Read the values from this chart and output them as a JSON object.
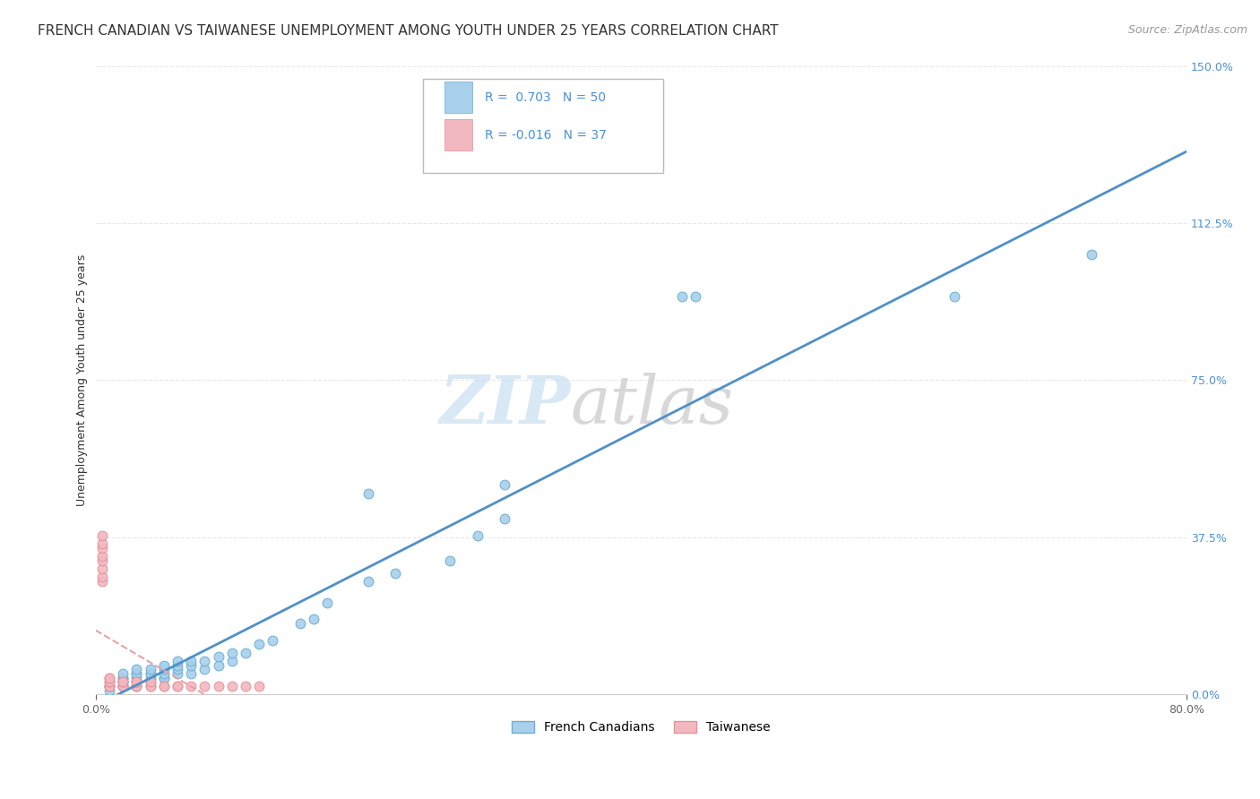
{
  "title": "FRENCH CANADIAN VS TAIWANESE UNEMPLOYMENT AMONG YOUTH UNDER 25 YEARS CORRELATION CHART",
  "source": "Source: ZipAtlas.com",
  "ylabel": "Unemployment Among Youth under 25 years",
  "xlim": [
    0.0,
    0.8
  ],
  "ylim": [
    0.0,
    1.5
  ],
  "xtick_labels": [
    "0.0%",
    "80.0%"
  ],
  "ytick_labels": [
    "0.0%",
    "37.5%",
    "75.0%",
    "112.5%",
    "150.0%"
  ],
  "ytick_vals": [
    0.0,
    0.375,
    0.75,
    1.125,
    1.5
  ],
  "xtick_vals": [
    0.0,
    0.8
  ],
  "fc_color": "#a8d0ea",
  "tw_color": "#f2b8c0",
  "fc_edge_color": "#6aaed6",
  "tw_edge_color": "#e8909a",
  "fc_line_color": "#5090c8",
  "tw_line_color": "#e8a0aa",
  "R_fc": 0.703,
  "N_fc": 50,
  "R_tw": -0.016,
  "N_tw": 37,
  "fc_x": [
    0.01,
    0.01,
    0.01,
    0.02,
    0.02,
    0.02,
    0.02,
    0.02,
    0.02,
    0.02,
    0.03,
    0.03,
    0.03,
    0.03,
    0.03,
    0.03,
    0.04,
    0.04,
    0.04,
    0.04,
    0.04,
    0.05,
    0.05,
    0.05,
    0.05,
    0.05,
    0.06,
    0.06,
    0.06,
    0.06,
    0.07,
    0.07,
    0.07,
    0.08,
    0.08,
    0.09,
    0.09,
    0.1,
    0.1,
    0.11,
    0.12,
    0.13,
    0.15,
    0.16,
    0.17,
    0.2,
    0.22,
    0.26,
    0.28,
    0.3
  ],
  "fc_y": [
    0.01,
    0.02,
    0.02,
    0.02,
    0.02,
    0.03,
    0.03,
    0.04,
    0.04,
    0.05,
    0.02,
    0.03,
    0.04,
    0.05,
    0.05,
    0.06,
    0.03,
    0.04,
    0.05,
    0.05,
    0.06,
    0.04,
    0.04,
    0.05,
    0.06,
    0.07,
    0.05,
    0.06,
    0.07,
    0.08,
    0.05,
    0.07,
    0.08,
    0.06,
    0.08,
    0.07,
    0.09,
    0.08,
    0.1,
    0.1,
    0.12,
    0.13,
    0.17,
    0.18,
    0.22,
    0.27,
    0.29,
    0.32,
    0.38,
    0.42
  ],
  "fc_outlier_x": [
    0.2,
    0.3,
    0.43,
    0.44,
    0.63,
    0.73
  ],
  "fc_outlier_y": [
    0.48,
    0.5,
    0.95,
    0.95,
    0.95,
    1.05
  ],
  "tw_x": [
    0.005,
    0.005,
    0.005,
    0.005,
    0.005,
    0.005,
    0.005,
    0.005,
    0.01,
    0.01,
    0.01,
    0.01,
    0.01,
    0.01,
    0.02,
    0.02,
    0.02,
    0.02,
    0.02,
    0.02,
    0.03,
    0.03,
    0.03,
    0.03,
    0.04,
    0.04,
    0.04,
    0.05,
    0.05,
    0.06,
    0.06,
    0.07,
    0.08,
    0.09,
    0.1,
    0.11,
    0.12
  ],
  "tw_y": [
    0.27,
    0.28,
    0.3,
    0.32,
    0.33,
    0.35,
    0.36,
    0.38,
    0.02,
    0.02,
    0.03,
    0.03,
    0.04,
    0.04,
    0.02,
    0.02,
    0.02,
    0.03,
    0.03,
    0.03,
    0.02,
    0.02,
    0.03,
    0.03,
    0.02,
    0.02,
    0.03,
    0.02,
    0.02,
    0.02,
    0.02,
    0.02,
    0.02,
    0.02,
    0.02,
    0.02,
    0.02
  ],
  "background_color": "#ffffff",
  "grid_color": "#e8e8e8",
  "grid_style": "--",
  "title_fontsize": 11,
  "source_fontsize": 9,
  "axis_label_fontsize": 9,
  "tick_fontsize": 9,
  "legend_fontsize": 10,
  "watermark_fontsize": 54
}
